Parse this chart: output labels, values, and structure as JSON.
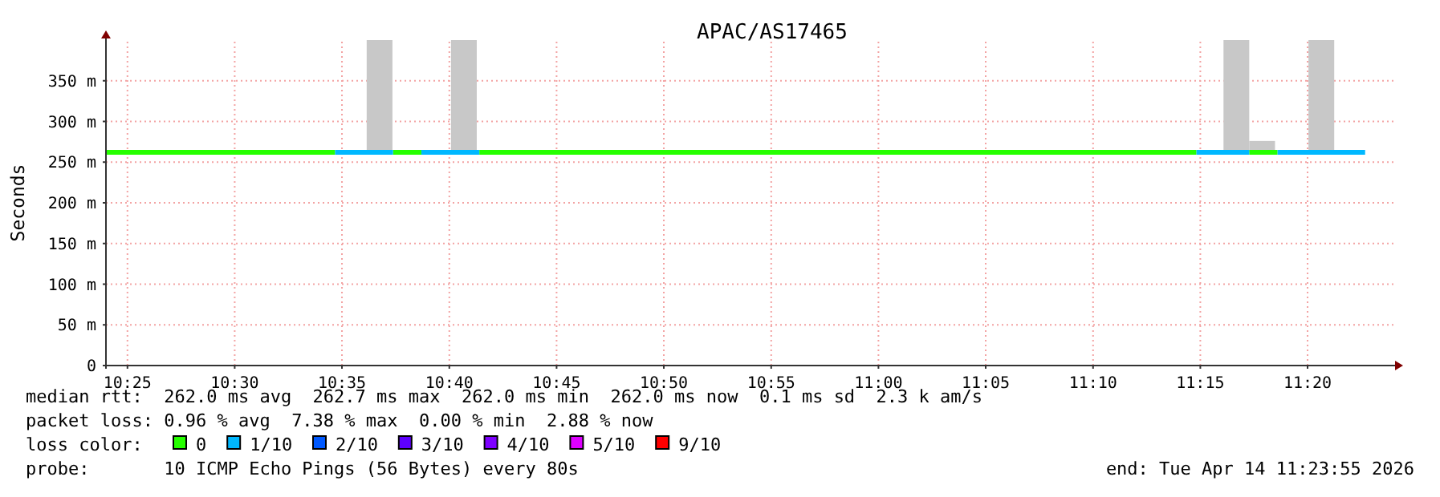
{
  "chart_data": {
    "type": "step",
    "title": "APAC/AS17465",
    "ylabel": "Seconds",
    "legend_title": "loss color:",
    "legend": "bottom",
    "grid": true,
    "xlim": [
      10.4,
      11.4
    ],
    "ylim": [
      0,
      400
    ],
    "xticks": [
      {
        "value": 10.4167,
        "label": "10:25"
      },
      {
        "value": 10.5,
        "label": "10:30"
      },
      {
        "value": 10.5833,
        "label": "10:35"
      },
      {
        "value": 10.6667,
        "label": "10:40"
      },
      {
        "value": 10.75,
        "label": "10:45"
      },
      {
        "value": 10.8333,
        "label": "10:50"
      },
      {
        "value": 10.9167,
        "label": "10:55"
      },
      {
        "value": 11.0,
        "label": "11:00"
      },
      {
        "value": 11.0833,
        "label": "11:05"
      },
      {
        "value": 11.1667,
        "label": "11:10"
      },
      {
        "value": 11.25,
        "label": "11:15"
      },
      {
        "value": 11.3333,
        "label": "11:20"
      }
    ],
    "yticks": [
      0,
      {
        "value": 50,
        "label": "50 m"
      },
      {
        "value": 100,
        "label": "100 m"
      },
      {
        "value": 150,
        "label": "150 m"
      },
      {
        "value": 200,
        "label": "200 m"
      },
      {
        "value": 250,
        "label": "250 m"
      },
      {
        "value": 300,
        "label": "300 m"
      },
      {
        "value": 350,
        "label": "350 m"
      }
    ],
    "series": [
      {
        "type": "bar",
        "color": "#c8c8c8",
        "x": [
          10.6125,
          10.678,
          11.278,
          11.298,
          11.344
        ],
        "base": [
          262,
          262,
          262,
          262,
          262
        ],
        "values": [
          138,
          138,
          138,
          14,
          138
        ]
      },
      {
        "name": "0",
        "color": "#26ff00",
        "x": [
          10.4,
          10.578,
          10.58,
          10.623,
          10.645,
          10.647,
          10.69,
          11.247,
          11.25,
          11.288,
          11.31
        ],
        "values": [
          262,
          262,
          null,
          262,
          262,
          null,
          262,
          262,
          null,
          262,
          262
        ]
      },
      {
        "name": "1/10",
        "color": "#00b8ff",
        "x": [
          10.578,
          10.623,
          10.625,
          10.645,
          10.69,
          10.692,
          11.247,
          11.288,
          11.29,
          11.31,
          11.378
        ],
        "values": [
          262,
          262,
          null,
          262,
          262,
          null,
          262,
          262,
          null,
          262,
          262
        ]
      },
      {
        "name": "2/10",
        "color": "#0059ff"
      },
      {
        "name": "3/10",
        "color": "#5e00ff"
      },
      {
        "name": "4/10",
        "color": "#7e00ff"
      },
      {
        "name": "5/10",
        "color": "#dd00ff"
      },
      {
        "name": "9/10",
        "color": "#ff0000"
      }
    ],
    "annotations": [
      "median rtt:  262.0 ms avg  262.7 ms max  262.0 ms min  262.0 ms now  0.1 ms sd  2.3 k am/s",
      "packet loss: 0.96 % avg  7.38 % max  0.00 % min  2.88 % now",
      "probe:       10 ICMP Echo Pings (56 Bytes) every 80s",
      "end: Tue Apr 14 11:23:55 2026"
    ]
  }
}
